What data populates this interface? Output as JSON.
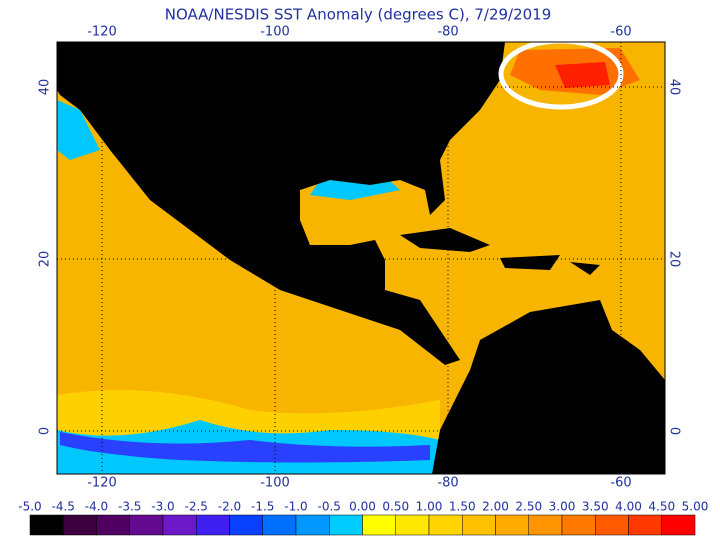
{
  "title": "NOAA/NESDIS SST Anomaly (degrees C), 7/29/2019",
  "lon_ticks": [
    -120,
    -100,
    -80,
    -60
  ],
  "lat_ticks": [
    40,
    20,
    0
  ],
  "colorbar": {
    "labels": [
      "-5.0",
      "-4.5",
      "-4.0",
      "-3.5",
      "-3.0",
      "-2.5",
      "-2.0",
      "-1.5",
      "-1.0",
      "-0.5",
      "0.00",
      "0.50",
      "1.00",
      "1.50",
      "2.00",
      "2.50",
      "3.00",
      "3.50",
      "4.00",
      "4.50",
      "5.00"
    ],
    "colors": [
      "#000000",
      "#3c0040",
      "#500060",
      "#640a90",
      "#6a18c8",
      "#4020f0",
      "#0a40ff",
      "#0070ff",
      "#0098ff",
      "#00ccff",
      "#ffff00",
      "#ffe800",
      "#ffd400",
      "#ffc000",
      "#ffaa00",
      "#ff9400",
      "#ff7800",
      "#ff5a00",
      "#ff3800",
      "#ff0000"
    ]
  }
}
